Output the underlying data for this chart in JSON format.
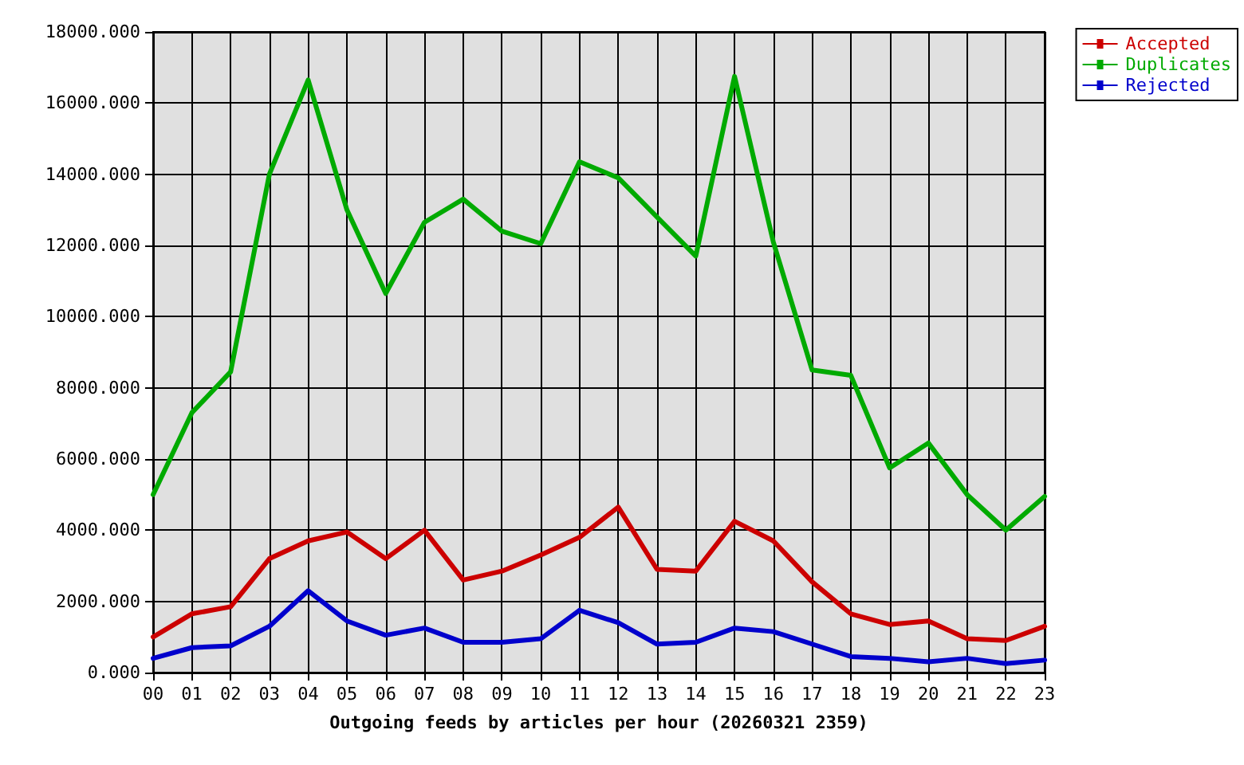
{
  "chart_data": {
    "type": "line",
    "xlabel": "Outgoing feeds by articles per hour (20260321 2359)",
    "categories": [
      "00",
      "01",
      "02",
      "03",
      "04",
      "05",
      "06",
      "07",
      "08",
      "09",
      "10",
      "11",
      "12",
      "13",
      "14",
      "15",
      "16",
      "17",
      "18",
      "19",
      "20",
      "21",
      "22",
      "23"
    ],
    "series": [
      {
        "name": "Accepted",
        "color": "#cc0000",
        "values": [
          1000,
          1650,
          1850,
          3200,
          3700,
          3950,
          3200,
          4000,
          2600,
          2850,
          3300,
          3800,
          4650,
          2900,
          2850,
          4250,
          3700,
          2550,
          1650,
          1350,
          1450,
          950,
          900,
          1300
        ]
      },
      {
        "name": "Duplicates",
        "color": "#00aa00",
        "values": [
          5000,
          7300,
          8450,
          14000,
          16650,
          13000,
          10650,
          12650,
          13300,
          12400,
          12050,
          14350,
          13900,
          12800,
          11700,
          16750,
          12100,
          8500,
          8350,
          5750,
          6450,
          5000,
          4000,
          4950
        ]
      },
      {
        "name": "Rejected",
        "color": "#0000cc",
        "values": [
          400,
          700,
          750,
          1300,
          2300,
          1450,
          1050,
          1250,
          850,
          850,
          950,
          1750,
          1400,
          800,
          850,
          1250,
          1150,
          800,
          450,
          400,
          300,
          400,
          250,
          350
        ]
      }
    ],
    "ylim": [
      0,
      18000
    ],
    "yticks": [
      {
        "value": 0,
        "label": "0.000"
      },
      {
        "value": 2000,
        "label": "2000.000"
      },
      {
        "value": 4000,
        "label": "4000.000"
      },
      {
        "value": 6000,
        "label": "6000.000"
      },
      {
        "value": 8000,
        "label": "8000.000"
      },
      {
        "value": 10000,
        "label": "10000.000"
      },
      {
        "value": 12000,
        "label": "12000.000"
      },
      {
        "value": 14000,
        "label": "14000.000"
      },
      {
        "value": 16000,
        "label": "16000.000"
      },
      {
        "value": 18000,
        "label": "18000.000"
      }
    ],
    "grid": true,
    "legend": "top right",
    "marker": "none",
    "line_style": "solid"
  }
}
